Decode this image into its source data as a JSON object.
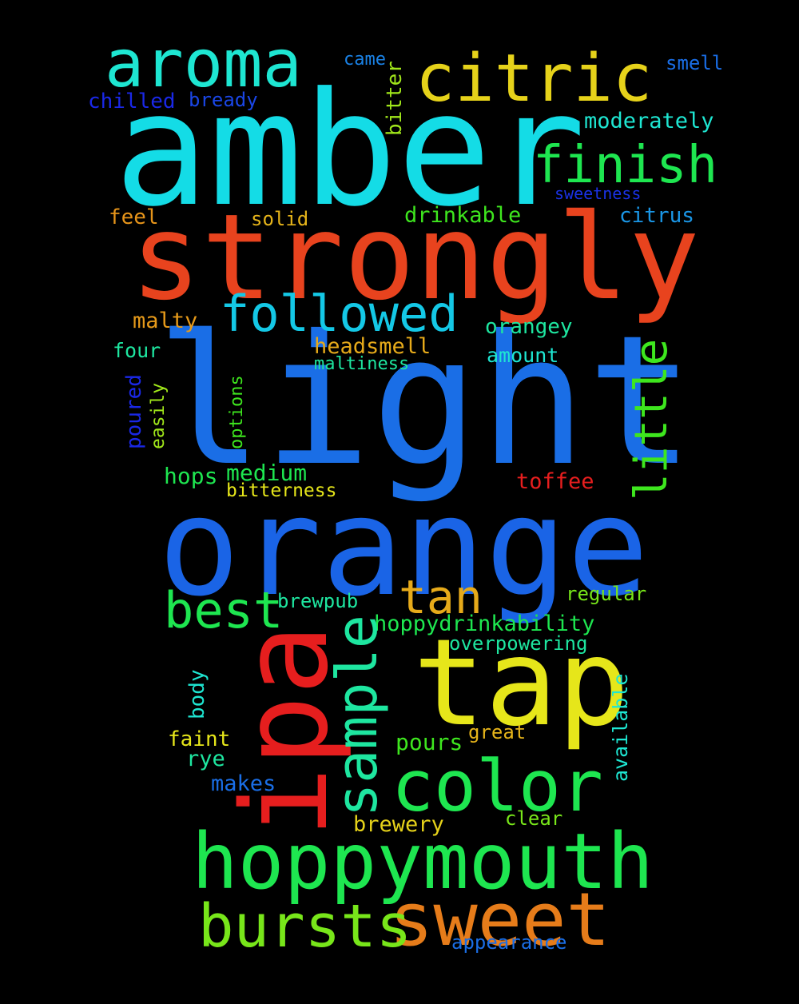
{
  "words": {
    "amber": "amber",
    "strongly": "strongly",
    "light": "light",
    "orange": "orange",
    "tap": "tap",
    "ipa": "ipa",
    "hoppymouth": "hoppymouth",
    "sweet": "sweet",
    "bursts": "bursts",
    "color": "color",
    "sample": "sample",
    "citric": "citric",
    "aroma": "aroma",
    "finish": "finish",
    "followed": "followed",
    "best": "best",
    "tan": "tan",
    "little": "little",
    "sweetness": "sweetness",
    "citrus": "citrus",
    "feel": "feel",
    "solid": "solid",
    "drinkable": "drinkable",
    "came": "came",
    "smell": "smell",
    "chilled": "chilled",
    "bready": "bready",
    "bitter": "bitter",
    "moderately": "moderately",
    "malty": "malty",
    "orangey": "orangey",
    "four": "four",
    "headsmell": "headsmell",
    "maltiness": "maltiness",
    "amount": "amount",
    "poured": "poured",
    "easily": "easily",
    "options": "options",
    "hops": "hops",
    "medium": "medium",
    "bitterness": "bitterness",
    "toffee": "toffee",
    "brewpub": "brewpub",
    "regular": "regular",
    "hoppydrinkability": "hoppydrinkability",
    "overpowering": "overpowering",
    "body": "body",
    "available": "available",
    "faint": "faint",
    "rye": "rye",
    "great": "great",
    "pours": "pours",
    "makes": "makes",
    "brewery": "brewery",
    "clear": "clear",
    "appearance": "appearance"
  },
  "background_color": "#000000"
}
